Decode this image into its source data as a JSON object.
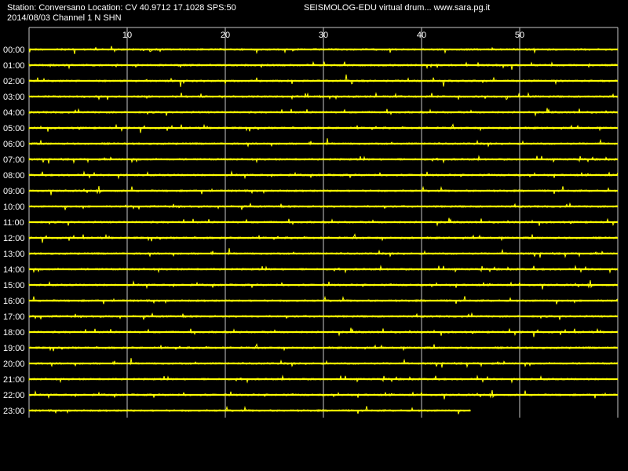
{
  "header": {
    "station_line": "Station: Conversano Location: CV 40.9712 17.1028 SPS:50",
    "title": "SEISMOLOG-EDU virtual drum... www.sara.pg.it",
    "date_channel": "2014/08/03  Channel 1 N SHN"
  },
  "chart_data": {
    "type": "line",
    "description_axis": "minutes",
    "x_ticks": [
      10,
      20,
      30,
      40,
      50
    ],
    "xlim": [
      0,
      60
    ],
    "rows": [
      "00:00",
      "01:00",
      "02:00",
      "03:00",
      "04:00",
      "05:00",
      "06:00",
      "07:00",
      "08:00",
      "09:00",
      "10:00",
      "11:00",
      "12:00",
      "13:00",
      "14:00",
      "15:00",
      "16:00",
      "17:00",
      "18:00",
      "19:00",
      "20:00",
      "21:00",
      "22:00",
      "23:00"
    ],
    "last_row_end_minute": 45,
    "grid": "vertical",
    "colors": {
      "trace": "#ffff00",
      "grid": "#c8c8c8",
      "background": "#000000",
      "text": "#ffffff"
    }
  }
}
